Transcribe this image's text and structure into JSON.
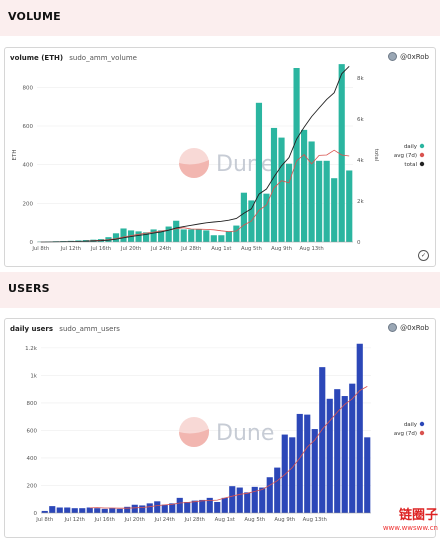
{
  "sections": {
    "volume_title": "VOLUME",
    "users_title": "USERS"
  },
  "volume_card": {
    "title": "volume (ETH)",
    "subtitle": "sudo_amm_volume",
    "author": "@0xRob"
  },
  "users_card": {
    "title": "daily users",
    "subtitle": "sudo_amm_users",
    "author": "@0xRob"
  },
  "watermark": {
    "brand": "Dune",
    "site_title": "链圈子",
    "site_url": "www.wwsww.cn"
  },
  "colors": {
    "volume_bar": "#2bb5a0",
    "users_bar": "#2c47b8",
    "avg_line": "#d9534f",
    "total_line": "#222222",
    "band": "#fbeeee"
  },
  "chart_data": [
    {
      "type": "bar",
      "title": "volume (ETH)",
      "xlabel": "",
      "ylabel": "ETH",
      "y2label": "total",
      "ylim": [
        0,
        900
      ],
      "y2lim": [
        0,
        8500
      ],
      "yticks": [
        "0",
        "200",
        "400",
        "600",
        "800"
      ],
      "y2ticks": [
        "0",
        "2k",
        "4k",
        "6k",
        "8k"
      ],
      "x_tick_labels": [
        "Jul 8th",
        "Jul 12th",
        "Jul 16th",
        "Jul 20th",
        "Jul 24th",
        "Jul 28th",
        "Aug 1st",
        "Aug 5th",
        "Aug 9th",
        "Aug 13th"
      ],
      "legend": [
        "daily",
        "avg (7d)",
        "total"
      ],
      "legend_position": "right",
      "series": [
        {
          "name": "daily",
          "axis": "left",
          "values": [
            2,
            3,
            4,
            5,
            6,
            8,
            10,
            12,
            15,
            25,
            45,
            70,
            60,
            55,
            50,
            65,
            60,
            80,
            110,
            65,
            65,
            65,
            60,
            35,
            35,
            55,
            85,
            255,
            215,
            720,
            250,
            590,
            540,
            405,
            900,
            580,
            520,
            420,
            420,
            330,
            920,
            370
          ]
        },
        {
          "name": "avg (7d)",
          "axis": "left",
          "values": [
            null,
            null,
            null,
            null,
            null,
            null,
            5,
            7,
            9,
            12,
            17,
            26,
            33,
            40,
            46,
            51,
            57,
            62,
            69,
            74,
            67,
            66,
            65,
            63,
            58,
            54,
            57,
            88,
            108,
            164,
            192,
            280,
            317,
            306,
            420,
            452,
            404,
            448,
            450,
            475,
            450,
            445
          ]
        },
        {
          "name": "total",
          "axis": "right",
          "values": [
            2,
            5,
            9,
            14,
            20,
            28,
            38,
            50,
            65,
            90,
            135,
            205,
            265,
            320,
            370,
            435,
            495,
            575,
            685,
            750,
            815,
            880,
            940,
            975,
            1010,
            1065,
            1150,
            1405,
            1620,
            2340,
            2590,
            3180,
            3720,
            4125,
            5025,
            5605,
            6125,
            6545,
            6965,
            7295,
            8215,
            8585
          ]
        }
      ]
    },
    {
      "type": "bar",
      "title": "daily users",
      "xlabel": "",
      "ylabel": "",
      "ylim": [
        0,
        1250
      ],
      "yticks": [
        "0",
        "200",
        "400",
        "600",
        "800",
        "1k",
        "1.2k"
      ],
      "x_tick_labels": [
        "Jul 8th",
        "Jul 12th",
        "Jul 16th",
        "Jul 20th",
        "Jul 24th",
        "Jul 28th",
        "Aug 1st",
        "Aug 5th",
        "Aug 9th",
        "Aug 13th"
      ],
      "legend": [
        "daily",
        "avg (7d)"
      ],
      "legend_position": "right",
      "series": [
        {
          "name": "daily",
          "values": [
            15,
            50,
            40,
            40,
            35,
            35,
            40,
            35,
            30,
            35,
            30,
            45,
            60,
            55,
            70,
            85,
            60,
            70,
            110,
            80,
            90,
            95,
            110,
            80,
            110,
            195,
            185,
            150,
            190,
            185,
            260,
            330,
            570,
            550,
            720,
            715,
            610,
            1060,
            830,
            900,
            850,
            940,
            1230,
            550
          ]
        },
        {
          "name": "avg (7d)",
          "values": [
            null,
            null,
            null,
            null,
            null,
            null,
            37,
            39,
            36,
            36,
            35,
            35,
            38,
            40,
            46,
            54,
            59,
            63,
            73,
            76,
            82,
            89,
            91,
            94,
            109,
            122,
            136,
            143,
            157,
            171,
            202,
            235,
            279,
            330,
            400,
            480,
            530,
            610,
            670,
            733,
            790,
            830,
            890,
            920
          ]
        }
      ]
    }
  ]
}
